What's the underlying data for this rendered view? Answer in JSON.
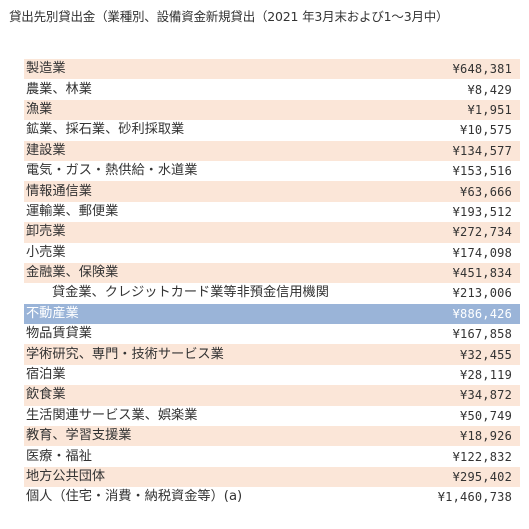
{
  "title": "貸出先別貸出金（業種別、設備資金新規貸出（2021 年3月末および1～3月中）",
  "rows": [
    {
      "label": "製造業",
      "value": "¥648,381"
    },
    {
      "label": "農業、林業",
      "value": "¥8,429"
    },
    {
      "label": "漁業",
      "value": "¥1,951"
    },
    {
      "label": "鉱業、採石業、砂利採取業",
      "value": "¥10,575"
    },
    {
      "label": "建設業",
      "value": "¥134,577"
    },
    {
      "label": "電気・ガス・熱供給・水道業",
      "value": "¥153,516"
    },
    {
      "label": "情報通信業",
      "value": "¥63,666"
    },
    {
      "label": "運輸業、郵便業",
      "value": "¥193,512"
    },
    {
      "label": "卸売業",
      "value": "¥272,734"
    },
    {
      "label": "小売業",
      "value": "¥174,098"
    },
    {
      "label": "金融業、保険業",
      "value": "¥451,834"
    },
    {
      "label": "貸金業、クレジットカード業等非預金信用機関",
      "value": "¥213,006"
    },
    {
      "label": "不動産業",
      "value": "¥886,426"
    },
    {
      "label": "物品賃貸業",
      "value": "¥167,858"
    },
    {
      "label": "学術研究、専門・技術サービス業",
      "value": "¥32,455"
    },
    {
      "label": "宿泊業",
      "value": "¥28,119"
    },
    {
      "label": "飲食業",
      "value": "¥34,872"
    },
    {
      "label": "生活関連サービス業、娯楽業",
      "value": "¥50,749"
    },
    {
      "label": "教育、学習支援業",
      "value": "¥18,926"
    },
    {
      "label": "医療・福祉",
      "value": "¥122,832"
    },
    {
      "label": "地方公共団体",
      "value": "¥295,402"
    },
    {
      "label": "個人（住宅・消費・納税資金等）(a)",
      "value": "¥1,460,738"
    }
  ],
  "colors": {
    "stripe": "#fbe6d8",
    "highlight": "#9ab4d8",
    "text": "#333333"
  },
  "highlighted_row": "不動産業"
}
